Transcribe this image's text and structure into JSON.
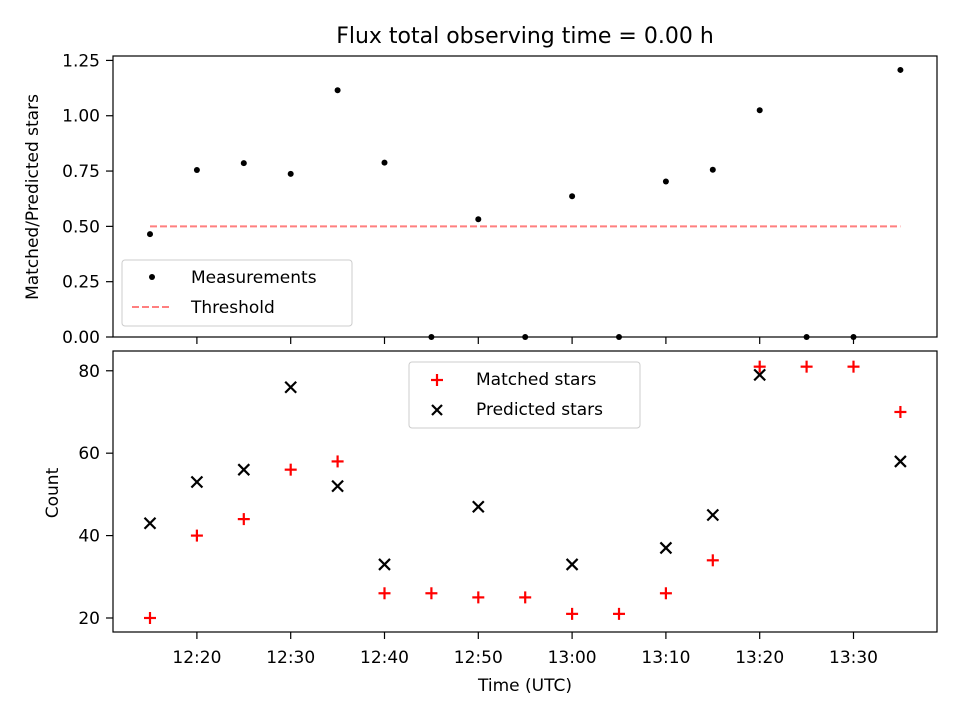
{
  "figure": {
    "title": "Flux total observing time = 0.00 h",
    "xlabel": "Time (UTC)"
  },
  "chart_data": [
    {
      "type": "scatter",
      "ylabel": "Matched/Predicted stars",
      "ylim": [
        0,
        1.27
      ],
      "yticks": [
        "0.00",
        "0.25",
        "0.50",
        "0.75",
        "1.00",
        "1.25"
      ],
      "series": [
        {
          "name": "Measurements",
          "marker": "dot",
          "color": "#000000",
          "x": [
            "12:15",
            "12:20",
            "12:25",
            "12:30",
            "12:35",
            "12:40",
            "12:45",
            "12:50",
            "12:55",
            "13:00",
            "13:05",
            "13:10",
            "13:15",
            "13:20",
            "13:25",
            "13:30",
            "13:35"
          ],
          "y": [
            0.465,
            0.755,
            0.786,
            0.737,
            1.115,
            0.788,
            0.0,
            0.532,
            0.0,
            0.636,
            0.0,
            0.703,
            0.756,
            1.025,
            0.0,
            0.0,
            1.207
          ]
        },
        {
          "name": "Threshold",
          "marker": "dashed-line",
          "color": "#ff7f7f",
          "x": [
            "12:15",
            "13:35"
          ],
          "y": [
            0.5,
            0.5
          ]
        }
      ],
      "legend_position": "lower-left"
    },
    {
      "type": "scatter",
      "ylabel": "Count",
      "ylim": [
        16.6,
        84.8
      ],
      "yticks": [
        "20",
        "40",
        "60",
        "80"
      ],
      "xticks": [
        "12:20",
        "12:30",
        "12:40",
        "12:50",
        "13:00",
        "13:10",
        "13:20",
        "13:30"
      ],
      "series": [
        {
          "name": "Matched stars",
          "marker": "plus",
          "color": "#ff0000",
          "x": [
            "12:15",
            "12:20",
            "12:25",
            "12:30",
            "12:35",
            "12:40",
            "12:45",
            "12:50",
            "12:55",
            "13:00",
            "13:05",
            "13:10",
            "13:15",
            "13:20",
            "13:25",
            "13:30",
            "13:35"
          ],
          "y": [
            20,
            40,
            44,
            56,
            58,
            26,
            26,
            25,
            25,
            21,
            21,
            26,
            34,
            81,
            81,
            81,
            70
          ]
        },
        {
          "name": "Predicted stars",
          "marker": "x",
          "color": "#000000",
          "x": [
            "12:15",
            "12:20",
            "12:25",
            "12:30",
            "12:35",
            "12:40",
            "12:50",
            "13:00",
            "13:10",
            "13:15",
            "13:20",
            "13:35"
          ],
          "y": [
            43,
            53,
            56,
            76,
            52,
            33,
            47,
            33,
            37,
            45,
            79,
            58
          ]
        }
      ],
      "legend_position": "upper-center"
    }
  ]
}
